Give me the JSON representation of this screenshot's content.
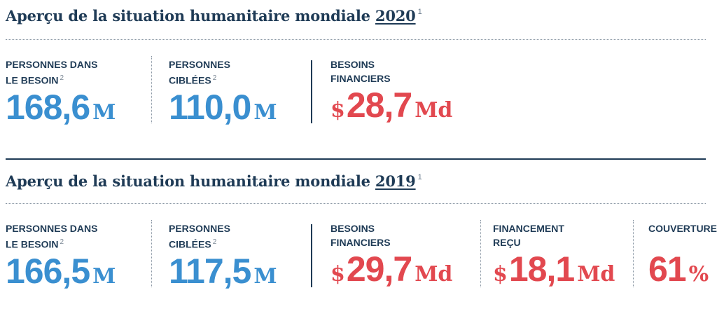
{
  "colors": {
    "navy": "#1f3b56",
    "blue": "#3a8fd0",
    "red": "#e2484f"
  },
  "sections": {
    "s2020": {
      "title_text": "Aperçu de la situation humanitaire mondiale",
      "year": "2020",
      "footnote": "1",
      "people_in_need": {
        "line1": "PERSONNES DANS",
        "line2": "LE BESOIN",
        "footnote": "2",
        "value": "168,6",
        "unit": "M"
      },
      "people_targeted": {
        "line1": "PERSONNES",
        "line2": "CIBLÉES",
        "footnote": "2",
        "value": "110,0",
        "unit": "M"
      },
      "financial_needs": {
        "line1": "BESOINS",
        "line2": "FINANCIERS",
        "prefix": "$",
        "value": "28,7",
        "unit": "Md"
      }
    },
    "s2019": {
      "title_text": "Aperçu de la situation humanitaire mondiale",
      "year": "2019",
      "footnote": "1",
      "people_in_need": {
        "line1": "PERSONNES DANS",
        "line2": "LE BESOIN",
        "footnote": "2",
        "value": "166,5",
        "unit": "M"
      },
      "people_targeted": {
        "line1": "PERSONNES",
        "line2": "CIBLÉES",
        "footnote": "2",
        "value": "117,5",
        "unit": "M"
      },
      "financial_needs": {
        "line1": "BESOINS",
        "line2": "FINANCIERS",
        "prefix": "$",
        "value": "29,7",
        "unit": "Md"
      },
      "funding_received": {
        "line1": "FINANCEMENT",
        "line2": "REÇU",
        "prefix": "$",
        "value": "18,1",
        "unit": "Md"
      },
      "coverage": {
        "line1": "COUVERTURE",
        "value": "61",
        "unit": "%"
      }
    }
  }
}
